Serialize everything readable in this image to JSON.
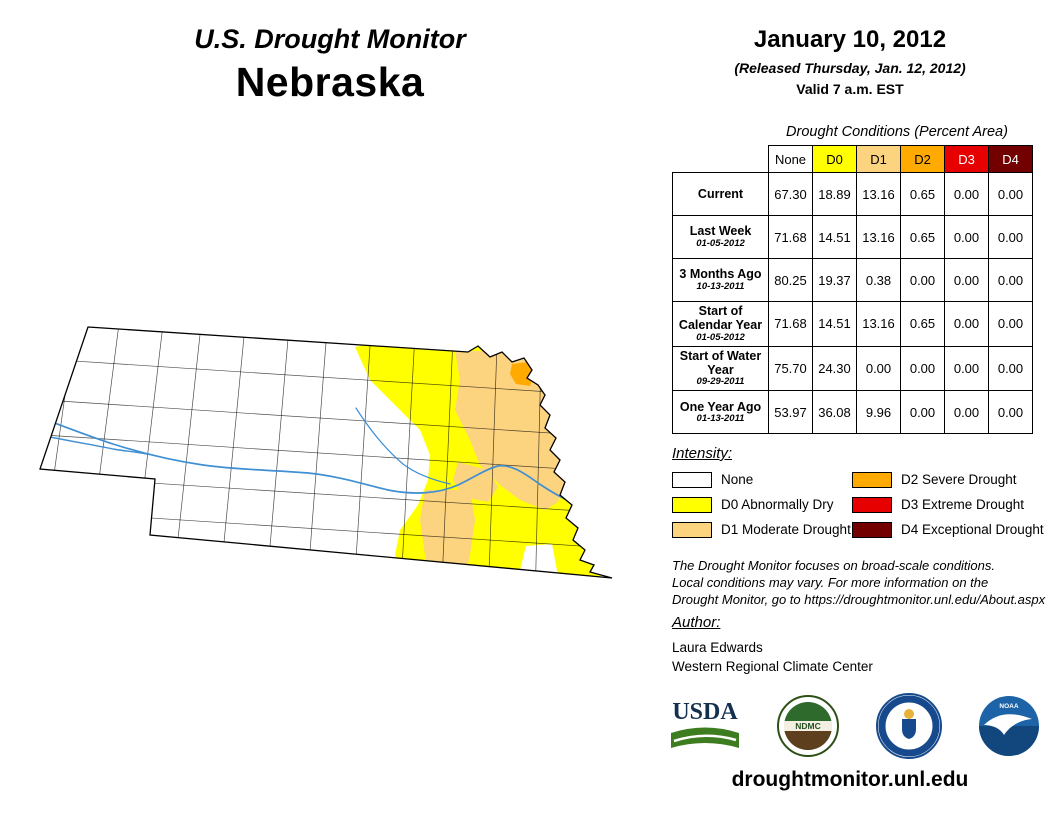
{
  "header": {
    "title": "U.S. Drought Monitor",
    "state": "Nebraska",
    "date": "January 10, 2012",
    "released": "(Released Thursday, Jan. 12, 2012)",
    "valid": "Valid 7 a.m. EST"
  },
  "palette": {
    "none": "#FFFFFF",
    "d0": "#FFFF00",
    "d1": "#FCD37F",
    "d2": "#FFAA00",
    "d3": "#E60000",
    "d4": "#730000",
    "river": "#3F8FD2"
  },
  "table": {
    "caption": "Drought Conditions (Percent Area)",
    "columns": [
      "None",
      "D0",
      "D1",
      "D2",
      "D3",
      "D4"
    ],
    "rows": [
      {
        "label": "Current",
        "sublabel": "",
        "values": [
          "67.30",
          "18.89",
          "13.16",
          "0.65",
          "0.00",
          "0.00"
        ]
      },
      {
        "label": "Last Week",
        "sublabel": "01-05-2012",
        "values": [
          "71.68",
          "14.51",
          "13.16",
          "0.65",
          "0.00",
          "0.00"
        ]
      },
      {
        "label": "3 Months Ago",
        "sublabel": "10-13-2011",
        "values": [
          "80.25",
          "19.37",
          "0.38",
          "0.00",
          "0.00",
          "0.00"
        ]
      },
      {
        "label": "Start of Calendar Year",
        "sublabel": "01-05-2012",
        "values": [
          "71.68",
          "14.51",
          "13.16",
          "0.65",
          "0.00",
          "0.00"
        ]
      },
      {
        "label": "Start of Water Year",
        "sublabel": "09-29-2011",
        "values": [
          "75.70",
          "24.30",
          "0.00",
          "0.00",
          "0.00",
          "0.00"
        ]
      },
      {
        "label": "One Year Ago",
        "sublabel": "01-13-2011",
        "values": [
          "53.97",
          "36.08",
          "9.96",
          "0.00",
          "0.00",
          "0.00"
        ]
      }
    ]
  },
  "legend": {
    "heading": "Intensity:",
    "items": [
      {
        "label": "None"
      },
      {
        "label": "D0 Abnormally Dry"
      },
      {
        "label": "D1 Moderate Drought"
      },
      {
        "label": "D2 Severe Drought"
      },
      {
        "label": "D3 Extreme Drought"
      },
      {
        "label": "D4 Exceptional Drought"
      }
    ]
  },
  "notes": {
    "line1": "The Drought Monitor focuses on broad-scale conditions.",
    "line2": "Local conditions may vary. For more information on the",
    "line3": "Drought Monitor, go to https://droughtmonitor.unl.edu/About.aspx"
  },
  "author": {
    "heading": "Author:",
    "name": "Laura Edwards",
    "org": "Western Regional Climate Center"
  },
  "logos": {
    "usda": "USDA",
    "ndmc": "NDMC",
    "noaa": "NOAA"
  },
  "footer": {
    "url": "droughtmonitor.unl.edu"
  }
}
